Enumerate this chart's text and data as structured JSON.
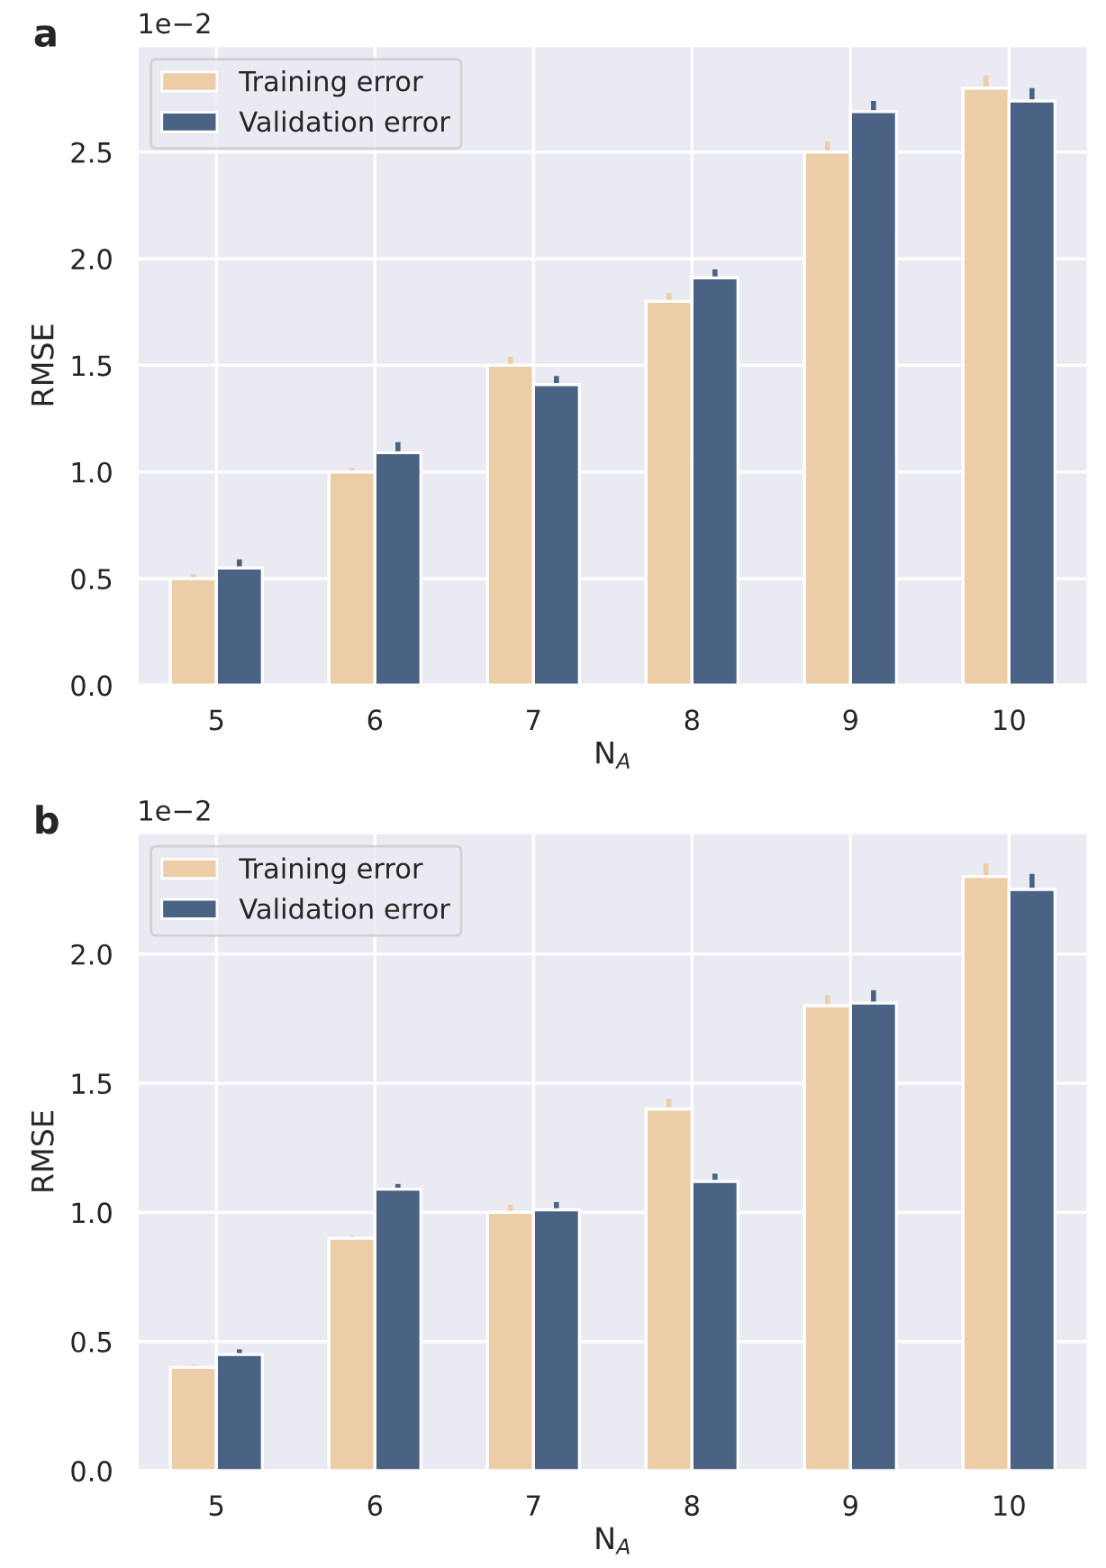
{
  "chart_data": [
    {
      "type": "bar",
      "title": "a",
      "xlabel": "N$_{A}$",
      "ylabel": "RMSE",
      "annotations": [
        "1e−2"
      ],
      "categories": [
        "5",
        "6",
        "7",
        "8",
        "9",
        "10"
      ],
      "series": [
        {
          "name": "Training error",
          "color": "#edcda8",
          "values": [
            0.5,
            1.0,
            1.5,
            1.8,
            2.5,
            2.8
          ],
          "errors": [
            0.02,
            0.02,
            0.04,
            0.04,
            0.05,
            0.06
          ]
        },
        {
          "name": "Validation error",
          "color": "#4a6283",
          "values": [
            0.55,
            1.09,
            1.41,
            1.91,
            2.69,
            2.74
          ],
          "errors": [
            0.04,
            0.05,
            0.04,
            0.04,
            0.05,
            0.06
          ]
        }
      ],
      "ylim": [
        0,
        3.0
      ],
      "yticks": [
        {
          "value": 0,
          "label": "0.0"
        },
        {
          "value": 0.5,
          "label": "0.5"
        },
        {
          "value": 1,
          "label": "1.0"
        },
        {
          "value": 1.5,
          "label": "1.5"
        },
        {
          "value": 2,
          "label": "2.0"
        },
        {
          "value": 2.5,
          "label": "2.5"
        }
      ],
      "grid": true,
      "legend": "top left"
    },
    {
      "type": "bar",
      "title": "b",
      "xlabel": "N$_{A}$",
      "ylabel": "RMSE",
      "annotations": [
        "1e−2"
      ],
      "categories": [
        "5",
        "6",
        "7",
        "8",
        "9",
        "10"
      ],
      "series": [
        {
          "name": "Training error",
          "color": "#edcda8",
          "values": [
            0.4,
            0.9,
            1.0,
            1.4,
            1.8,
            2.3
          ],
          "errors": [
            0.01,
            0.01,
            0.03,
            0.04,
            0.04,
            0.05
          ]
        },
        {
          "name": "Validation error",
          "color": "#4a6283",
          "values": [
            0.45,
            1.09,
            1.01,
            1.12,
            1.81,
            2.25
          ],
          "errors": [
            0.02,
            0.02,
            0.03,
            0.03,
            0.05,
            0.06
          ]
        }
      ],
      "ylim": [
        0,
        2.47
      ],
      "yticks": [
        {
          "value": 0,
          "label": "0.0"
        },
        {
          "value": 0.5,
          "label": "0.5"
        },
        {
          "value": 1,
          "label": "1.0"
        },
        {
          "value": 1.5,
          "label": "1.5"
        },
        {
          "value": 2,
          "label": "2.0"
        }
      ],
      "grid": true,
      "legend": "top left"
    }
  ]
}
